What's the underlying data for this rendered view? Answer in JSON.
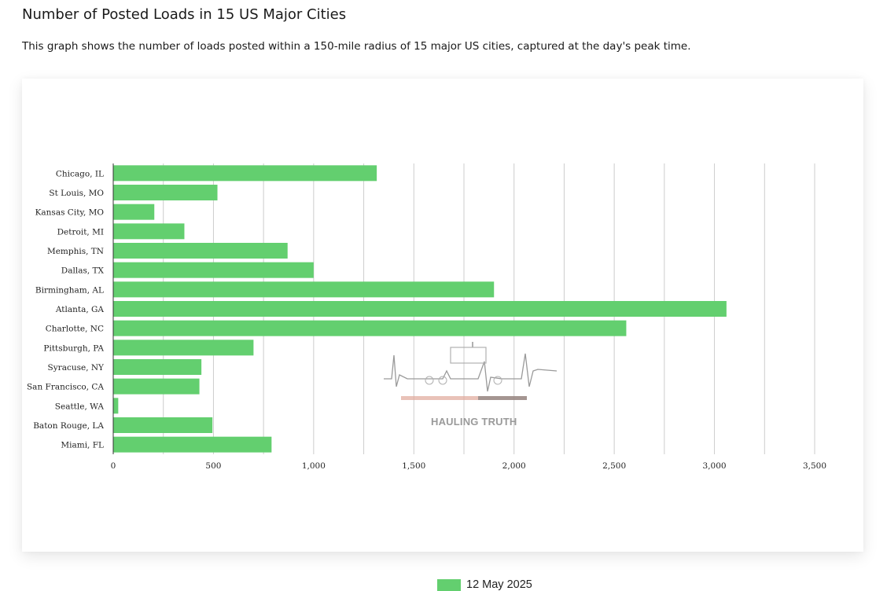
{
  "page": {
    "title": "Number of Posted Loads in 15 US Major Cities",
    "description": "This graph shows the number of loads posted within a 150-mile radius of 15 major US cities, captured at the day's peak time."
  },
  "watermark": {
    "text": "HAULING TRUTH"
  },
  "colors": {
    "bar": "#63cf6f",
    "grid": "#cccccc",
    "axis": "#333333"
  },
  "chart_data": {
    "type": "bar",
    "orientation": "horizontal",
    "categories": [
      "Chicago, IL",
      "St Louis, MO",
      "Kansas City, MO",
      "Detroit, MI",
      "Memphis, TN",
      "Dallas, TX",
      "Birmingham, AL",
      "Atlanta, GA",
      "Charlotte, NC",
      "Pittsburgh, PA",
      "Syracuse, NY",
      "San Francisco, CA",
      "Seattle, WA",
      "Baton Rouge, LA",
      "Miami, FL"
    ],
    "series": [
      {
        "name": "12 May 2025",
        "values": [
          1315,
          520,
          205,
          355,
          870,
          1000,
          1900,
          3060,
          2560,
          700,
          440,
          430,
          25,
          495,
          790
        ]
      }
    ],
    "xlim": [
      0,
      3500
    ],
    "xticks": [
      0,
      500,
      1000,
      1500,
      2000,
      2500,
      3000,
      3500
    ],
    "xtick_labels": [
      "0",
      "500",
      "1,000",
      "1,500",
      "2,000",
      "2,500",
      "3,000",
      "3,500"
    ],
    "grid": true,
    "legend_position": "bottom"
  }
}
